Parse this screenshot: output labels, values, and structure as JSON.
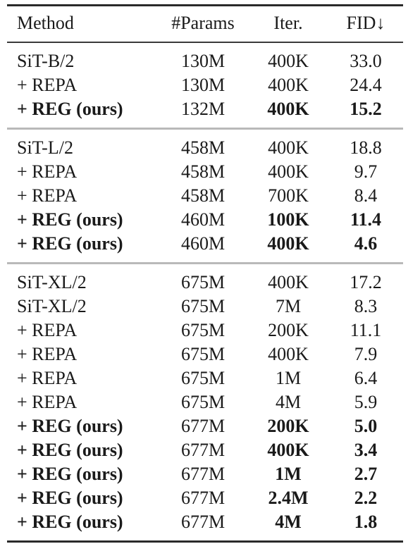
{
  "table": {
    "headers": {
      "method": "Method",
      "params": "#Params",
      "iter": "Iter.",
      "fid": "FID↓"
    },
    "groups": [
      {
        "rows": [
          {
            "method": "SiT-B/2",
            "params": "130M",
            "iter": "400K",
            "fid": "33.0",
            "method_bold": false,
            "iter_bold": false,
            "fid_bold": false
          },
          {
            "method": "+ REPA",
            "params": "130M",
            "iter": "400K",
            "fid": "24.4",
            "method_bold": false,
            "iter_bold": false,
            "fid_bold": false
          },
          {
            "method": "+ REG (ours)",
            "params": "132M",
            "iter": "400K",
            "fid": "15.2",
            "method_bold": true,
            "iter_bold": true,
            "fid_bold": true
          }
        ]
      },
      {
        "rows": [
          {
            "method": "SiT-L/2",
            "params": "458M",
            "iter": "400K",
            "fid": "18.8",
            "method_bold": false,
            "iter_bold": false,
            "fid_bold": false
          },
          {
            "method": "+ REPA",
            "params": "458M",
            "iter": "400K",
            "fid": "9.7",
            "method_bold": false,
            "iter_bold": false,
            "fid_bold": false
          },
          {
            "method": "+ REPA",
            "params": "458M",
            "iter": "700K",
            "fid": "8.4",
            "method_bold": false,
            "iter_bold": false,
            "fid_bold": false
          },
          {
            "method": "+ REG (ours)",
            "params": "460M",
            "iter": "100K",
            "fid": "11.4",
            "method_bold": true,
            "iter_bold": true,
            "fid_bold": true
          },
          {
            "method": "+ REG (ours)",
            "params": "460M",
            "iter": "400K",
            "fid": "4.6",
            "method_bold": true,
            "iter_bold": true,
            "fid_bold": true
          }
        ]
      },
      {
        "rows": [
          {
            "method": "SiT-XL/2",
            "params": "675M",
            "iter": "400K",
            "fid": "17.2",
            "method_bold": false,
            "iter_bold": false,
            "fid_bold": false
          },
          {
            "method": "SiT-XL/2",
            "params": "675M",
            "iter": "7M",
            "fid": "8.3",
            "method_bold": false,
            "iter_bold": false,
            "fid_bold": false
          },
          {
            "method": "+ REPA",
            "params": "675M",
            "iter": "200K",
            "fid": "11.1",
            "method_bold": false,
            "iter_bold": false,
            "fid_bold": false
          },
          {
            "method": "+ REPA",
            "params": "675M",
            "iter": "400K",
            "fid": "7.9",
            "method_bold": false,
            "iter_bold": false,
            "fid_bold": false
          },
          {
            "method": "+ REPA",
            "params": "675M",
            "iter": "1M",
            "fid": "6.4",
            "method_bold": false,
            "iter_bold": false,
            "fid_bold": false
          },
          {
            "method": "+ REPA",
            "params": "675M",
            "iter": "4M",
            "fid": "5.9",
            "method_bold": false,
            "iter_bold": false,
            "fid_bold": false
          },
          {
            "method": "+ REG (ours)",
            "params": "677M",
            "iter": "200K",
            "fid": "5.0",
            "method_bold": true,
            "iter_bold": true,
            "fid_bold": true
          },
          {
            "method": "+ REG (ours)",
            "params": "677M",
            "iter": "400K",
            "fid": "3.4",
            "method_bold": true,
            "iter_bold": true,
            "fid_bold": true
          },
          {
            "method": "+ REG (ours)",
            "params": "677M",
            "iter": "1M",
            "fid": "2.7",
            "method_bold": true,
            "iter_bold": true,
            "fid_bold": true
          },
          {
            "method": "+ REG (ours)",
            "params": "677M",
            "iter": "2.4M",
            "fid": "2.2",
            "method_bold": true,
            "iter_bold": true,
            "fid_bold": true
          },
          {
            "method": "+ REG (ours)",
            "params": "677M",
            "iter": "4M",
            "fid": "1.8",
            "method_bold": true,
            "iter_bold": true,
            "fid_bold": true
          }
        ]
      }
    ]
  }
}
